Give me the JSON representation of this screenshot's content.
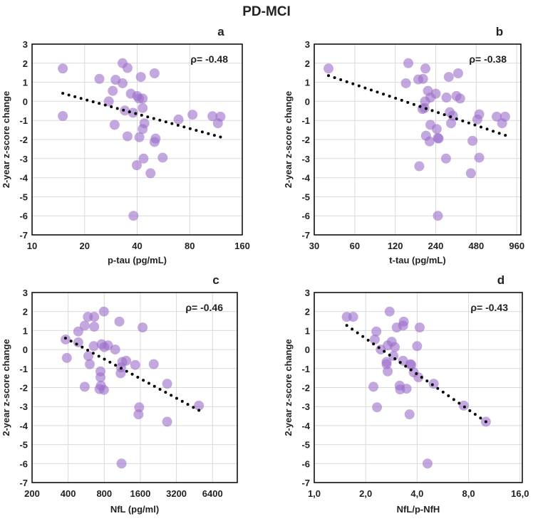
{
  "title": "PD-MCI",
  "colors": {
    "point": "#9b6cc9",
    "trend": "#000000",
    "grid": "#d9d9d9",
    "axis": "#000000"
  },
  "chart_data": [
    {
      "type": "scatter",
      "panel": "a",
      "rho": "ρ= -0.48",
      "xlabel": "p-tau (pg/mL)",
      "ylabel": "2-year z-score change",
      "xscale": "log2",
      "xlim": [
        10,
        160
      ],
      "ylim": [
        -7,
        3
      ],
      "xticks": [
        10,
        20,
        40,
        80,
        160
      ],
      "xtick_labels": [
        "10",
        "20",
        "40",
        "80",
        "160"
      ],
      "yticks": [
        -7,
        -6,
        -5,
        -4,
        -3,
        -2,
        -1,
        0,
        1,
        2,
        3
      ],
      "grid": true,
      "trend": [
        [
          15,
          0.42
        ],
        [
          120,
          -1.87
        ]
      ],
      "points": [
        [
          15,
          1.72
        ],
        [
          15,
          -0.77
        ],
        [
          24.3,
          1.18
        ],
        [
          30.1,
          1.13
        ],
        [
          33,
          2.0
        ],
        [
          35.2,
          1.75
        ],
        [
          33,
          0.95
        ],
        [
          29,
          0.55
        ],
        [
          27.5,
          0.0
        ],
        [
          36.8,
          0.4
        ],
        [
          40,
          0.28
        ],
        [
          41,
          0.15
        ],
        [
          43,
          0.15
        ],
        [
          42,
          1.28
        ],
        [
          50.3,
          1.47
        ],
        [
          43,
          -0.35
        ],
        [
          34,
          -0.48
        ],
        [
          37.9,
          -0.6
        ],
        [
          29.7,
          -1.23
        ],
        [
          35.2,
          -1.83
        ],
        [
          44,
          -1.15
        ],
        [
          43,
          -1.45
        ],
        [
          41.2,
          -1.88
        ],
        [
          51,
          -1.95
        ],
        [
          50.3,
          -2.13
        ],
        [
          43.5,
          -3.0
        ],
        [
          56,
          -2.95
        ],
        [
          39.8,
          -3.35
        ],
        [
          47.7,
          -3.77
        ],
        [
          38.1,
          -6.0
        ],
        [
          69,
          -0.95
        ],
        [
          83,
          -0.7
        ],
        [
          108,
          -0.78
        ],
        [
          120,
          -0.8
        ],
        [
          116,
          -1.15
        ]
      ]
    },
    {
      "type": "scatter",
      "panel": "b",
      "rho": "ρ= -0.38",
      "xlabel": "t-tau (pg/mL)",
      "ylabel": "2-year z-score change",
      "xscale": "log2",
      "xlim": [
        30,
        1030
      ],
      "ylim": [
        -7,
        3
      ],
      "xticks": [
        30,
        60,
        120,
        240,
        480,
        960
      ],
      "xtick_labels": [
        "30",
        "60",
        "120",
        "240",
        "480",
        "960"
      ],
      "yticks": [
        -7,
        -6,
        -5,
        -4,
        -3,
        -2,
        -1,
        0,
        1,
        2,
        3
      ],
      "grid": true,
      "trend": [
        [
          38.3,
          1.35
        ],
        [
          790,
          -1.78
        ]
      ],
      "points": [
        [
          38.3,
          1.72
        ],
        [
          150,
          2.0
        ],
        [
          144,
          0.95
        ],
        [
          178,
          1.15
        ],
        [
          193,
          1.18
        ],
        [
          201,
          1.72
        ],
        [
          300,
          1.28
        ],
        [
          352,
          1.47
        ],
        [
          210,
          0.55
        ],
        [
          240,
          0.4
        ],
        [
          219,
          0.2
        ],
        [
          200,
          0.0
        ],
        [
          288,
          0.2
        ],
        [
          342,
          0.28
        ],
        [
          364,
          0.15
        ],
        [
          191,
          -0.4
        ],
        [
          198,
          -0.35
        ],
        [
          305,
          -0.57
        ],
        [
          322,
          -0.75
        ],
        [
          312,
          -1.15
        ],
        [
          219,
          -1.23
        ],
        [
          244,
          -1.45
        ],
        [
          203,
          -1.8
        ],
        [
          216,
          -2.1
        ],
        [
          249,
          -1.92
        ],
        [
          252,
          -1.95
        ],
        [
          286,
          -3.0
        ],
        [
          181,
          -3.4
        ],
        [
          489,
          -0.95
        ],
        [
          505,
          -0.68
        ],
        [
          681,
          -0.8
        ],
        [
          786,
          -0.8
        ],
        [
          747,
          -1.15
        ],
        [
          450,
          -2.07
        ],
        [
          505,
          -2.95
        ],
        [
          438,
          -3.77
        ],
        [
          249,
          -6.0
        ]
      ]
    },
    {
      "type": "scatter",
      "panel": "c",
      "rho": "ρ= -0.46",
      "xlabel": "NfL (pg/ml)",
      "ylabel": "2-year z-score change",
      "xscale": "log2",
      "xlim": [
        200,
        10300
      ],
      "ylim": [
        -7,
        3
      ],
      "xticks": [
        200,
        400,
        800,
        1600,
        3200,
        6400
      ],
      "xtick_labels": [
        "200",
        "400",
        "800",
        "1600",
        "3200",
        "6400"
      ],
      "yticks": [
        -7,
        -6,
        -5,
        -4,
        -3,
        -2,
        -1,
        0,
        1,
        2,
        3
      ],
      "grid": true,
      "trend": [
        [
          380,
          0.6
        ],
        [
          4930,
          -3.2
        ]
      ],
      "points": [
        [
          381,
          0.53
        ],
        [
          390,
          -0.44
        ],
        [
          486,
          0.38
        ],
        [
          486,
          0.95
        ],
        [
          550,
          1.26
        ],
        [
          584,
          1.72
        ],
        [
          660,
          1.72
        ],
        [
          660,
          1.2
        ],
        [
          654,
          0.18
        ],
        [
          590,
          -0.34
        ],
        [
          606,
          -0.77
        ],
        [
          550,
          -1.96
        ],
        [
          795,
          2.0
        ],
        [
          761,
          0.28
        ],
        [
          800,
          0.13
        ],
        [
          860,
          0.22
        ],
        [
          987,
          0.0
        ],
        [
          1070,
          1.47
        ],
        [
          1130,
          -0.65
        ],
        [
          1219,
          -0.59
        ],
        [
          1096,
          -1.25
        ],
        [
          1106,
          -0.94
        ],
        [
          744,
          -1.15
        ],
        [
          744,
          -1.46
        ],
        [
          750,
          -1.9
        ],
        [
          730,
          -2.08
        ],
        [
          795,
          -2.12
        ],
        [
          1450,
          -0.81
        ],
        [
          1670,
          1.16
        ],
        [
          2070,
          -0.77
        ],
        [
          1565,
          -3.04
        ],
        [
          1545,
          -3.41
        ],
        [
          2680,
          -1.8
        ],
        [
          2680,
          -3.8
        ],
        [
          4930,
          -2.95
        ],
        [
          1115,
          -6.0
        ]
      ]
    },
    {
      "type": "scatter",
      "panel": "d",
      "rho": "ρ= -0.43",
      "xlabel": "NfL/p-NfH",
      "ylabel": "2-year z-score change",
      "xscale": "log2",
      "xlim": [
        1,
        16.5
      ],
      "ylim": [
        -7,
        3
      ],
      "xticks": [
        1,
        2,
        4,
        8,
        16
      ],
      "xtick_labels": [
        "1,0",
        "2,0",
        "4,0",
        "8,0",
        "16,0"
      ],
      "yticks": [
        -7,
        -6,
        -5,
        -4,
        -3,
        -2,
        -1,
        0,
        1,
        2,
        3
      ],
      "grid": true,
      "trend": [
        [
          1.55,
          1.27
        ],
        [
          10.1,
          -3.8
        ]
      ],
      "points": [
        [
          1.55,
          1.72
        ],
        [
          1.69,
          1.72
        ],
        [
          2.31,
          0.95
        ],
        [
          2.26,
          0.53
        ],
        [
          2.45,
          0.0
        ],
        [
          2.76,
          2.0
        ],
        [
          3.04,
          1.16
        ],
        [
          3.34,
          1.47
        ],
        [
          3.31,
          1.26
        ],
        [
          2.84,
          0.41
        ],
        [
          2.69,
          0.22
        ],
        [
          2.96,
          0.13
        ],
        [
          2.91,
          -0.34
        ],
        [
          2.65,
          -0.65
        ],
        [
          2.65,
          -0.77
        ],
        [
          2.69,
          -1.15
        ],
        [
          4.0,
          0.18
        ],
        [
          4.14,
          1.16
        ],
        [
          3.31,
          -0.59
        ],
        [
          3.65,
          -0.77
        ],
        [
          3.7,
          -0.81
        ],
        [
          3.82,
          -1.2
        ],
        [
          4.07,
          -1.46
        ],
        [
          5.0,
          -1.8
        ],
        [
          3.16,
          -1.9
        ],
        [
          3.18,
          -2.1
        ],
        [
          3.47,
          -2.06
        ],
        [
          2.22,
          -1.96
        ],
        [
          2.33,
          -3.04
        ],
        [
          3.61,
          -3.41
        ],
        [
          7.5,
          -2.95
        ],
        [
          10.1,
          -3.8
        ],
        [
          4.6,
          -6.0
        ]
      ]
    }
  ]
}
